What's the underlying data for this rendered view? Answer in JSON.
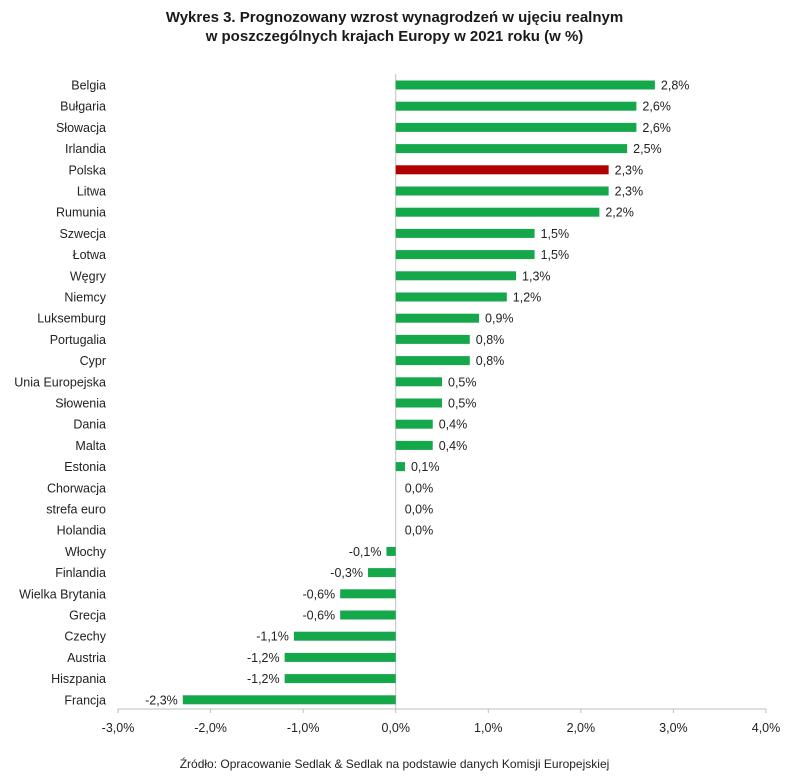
{
  "title_line1": "Wykres 3. Prognozowany wzrost wynagrodzeń w ujęciu realnym",
  "title_line2": "w poszczególnych krajach Europy w 2021 roku (w %)",
  "source": "Źródło: Opracowanie Sedlak & Sedlak na podstawie danych Komisji Europejskiej",
  "colors": {
    "bar": "#14a84b",
    "highlight": "#b00000",
    "axis": "#bfbfbf",
    "text": "#222222"
  },
  "chart_data": {
    "type": "bar",
    "orientation": "horizontal",
    "categories": [
      "Belgia",
      "Bułgaria",
      "Słowacja",
      "Irlandia",
      "Polska",
      "Litwa",
      "Rumunia",
      "Szwecja",
      "Łotwa",
      "Węgry",
      "Niemcy",
      "Luksemburg",
      "Portugalia",
      "Cypr",
      "Unia Europejska",
      "Słowenia",
      "Dania",
      "Malta",
      "Estonia",
      "Chorwacja",
      "strefa euro",
      "Holandia",
      "Włochy",
      "Finlandia",
      "Wielka Brytania",
      "Grecja",
      "Czechy",
      "Austria",
      "Hiszpania",
      "Francja"
    ],
    "values": [
      2.8,
      2.6,
      2.6,
      2.5,
      2.3,
      2.3,
      2.2,
      1.5,
      1.5,
      1.3,
      1.2,
      0.9,
      0.8,
      0.8,
      0.5,
      0.5,
      0.4,
      0.4,
      0.1,
      0.0,
      0.0,
      0.0,
      -0.1,
      -0.3,
      -0.6,
      -0.6,
      -1.1,
      -1.2,
      -1.2,
      -2.3
    ],
    "data_labels": [
      "2,8%",
      "2,6%",
      "2,6%",
      "2,5%",
      "2,3%",
      "2,3%",
      "2,2%",
      "1,5%",
      "1,5%",
      "1,3%",
      "1,2%",
      "0,9%",
      "0,8%",
      "0,8%",
      "0,5%",
      "0,5%",
      "0,4%",
      "0,4%",
      "0,1%",
      "0,0%",
      "0,0%",
      "0,0%",
      "-0,1%",
      "-0,3%",
      "-0,6%",
      "-0,6%",
      "-1,1%",
      "-1,2%",
      "-1,2%",
      "-2,3%"
    ],
    "highlight_category": "Polska",
    "xlim": [
      -3.0,
      4.0
    ],
    "xticks": [
      -3.0,
      -2.0,
      -1.0,
      0.0,
      1.0,
      2.0,
      3.0,
      4.0
    ],
    "xtick_labels": [
      "-3,0%",
      "-2,0%",
      "-1,0%",
      "0,0%",
      "1,0%",
      "2,0%",
      "3,0%",
      "4,0%"
    ],
    "grid": false,
    "legend": "none"
  }
}
